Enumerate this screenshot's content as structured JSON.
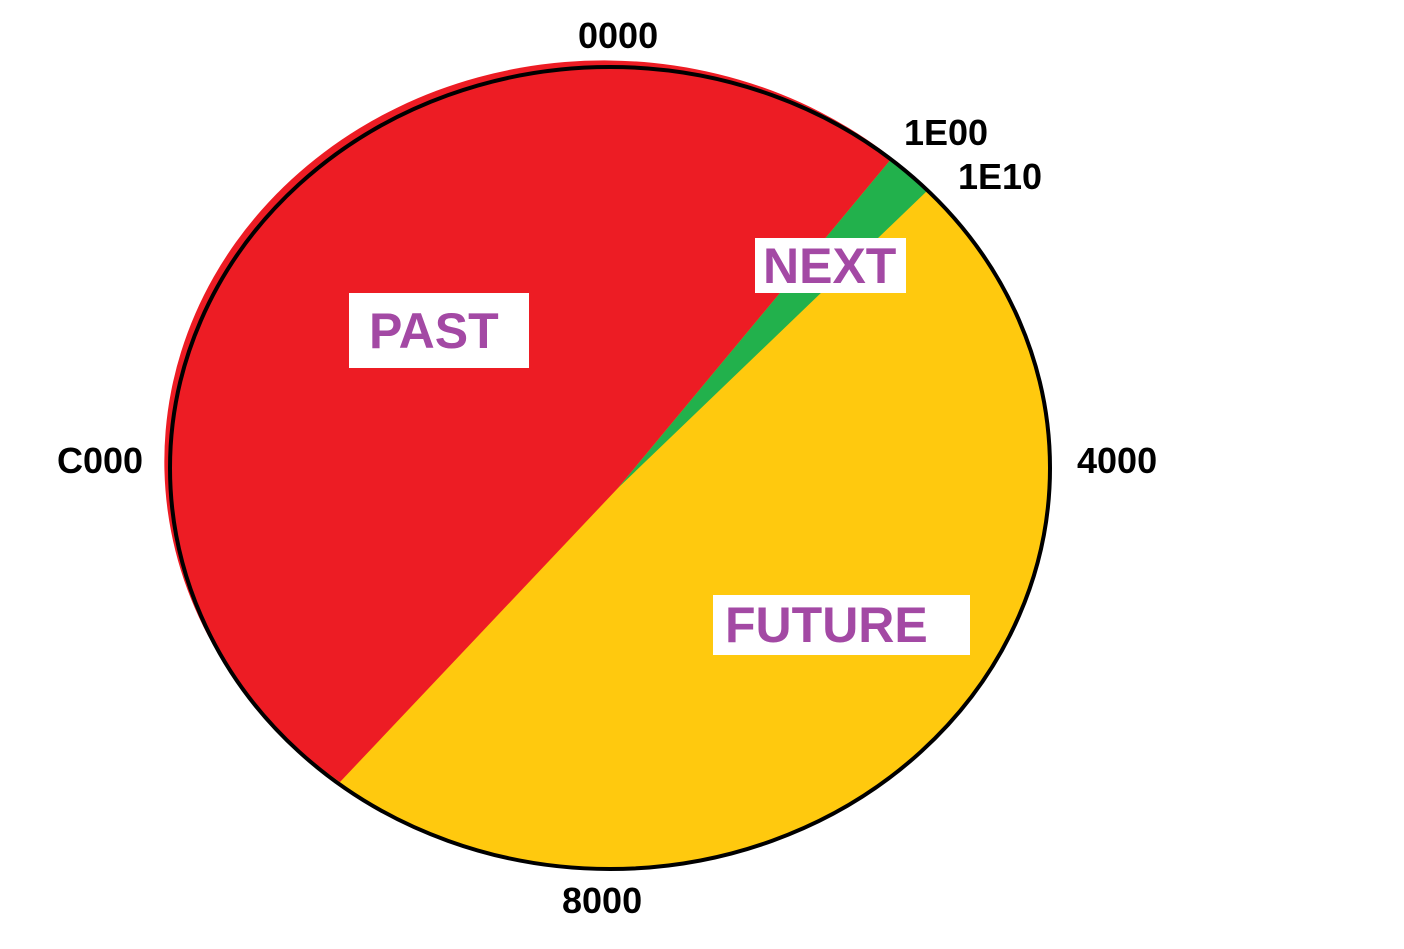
{
  "colors": {
    "past": "#ED1C24",
    "next": "#22B14C",
    "future": "#FFC90E",
    "label_text": "#A349A4",
    "outline": "#000000"
  },
  "ticks": {
    "top": "0000",
    "next_start": "1E00",
    "next_end": "1E10",
    "right": "4000",
    "bottom": "8000",
    "left": "C000"
  },
  "regions": {
    "past": "PAST",
    "next": "NEXT",
    "future": "FUTURE"
  }
}
